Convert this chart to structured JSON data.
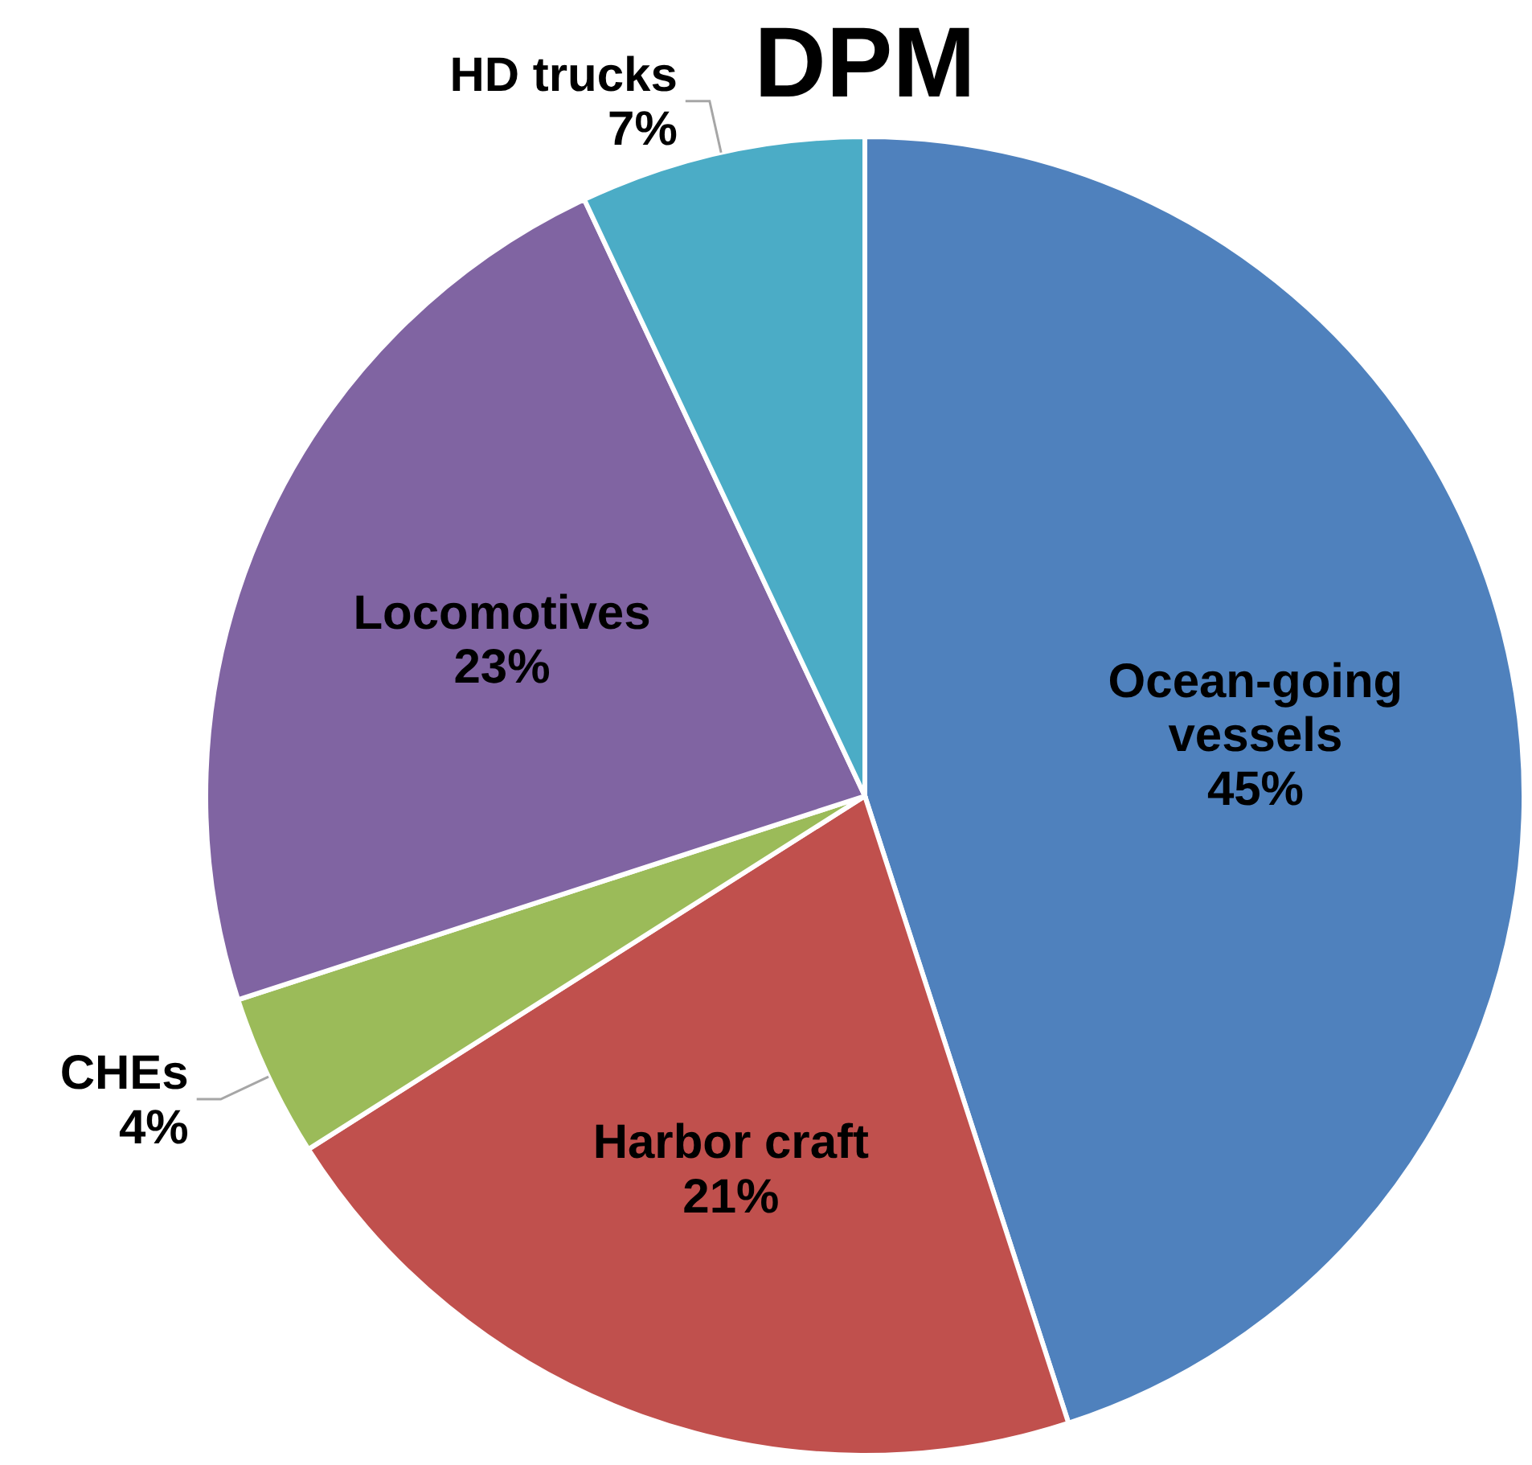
{
  "chart_data": {
    "type": "pie",
    "title": "DPM",
    "categories": [
      "Ocean-going vessels",
      "Harbor craft",
      "CHEs",
      "Locomotives",
      "HD trucks"
    ],
    "values": [
      45,
      21,
      4,
      23,
      7
    ],
    "value_labels": [
      "45%",
      "21%",
      "4%",
      "23%",
      "7%"
    ],
    "colors": [
      "#4f81bd",
      "#c0504d",
      "#9bbb59",
      "#8064a2",
      "#4bacc6"
    ]
  }
}
